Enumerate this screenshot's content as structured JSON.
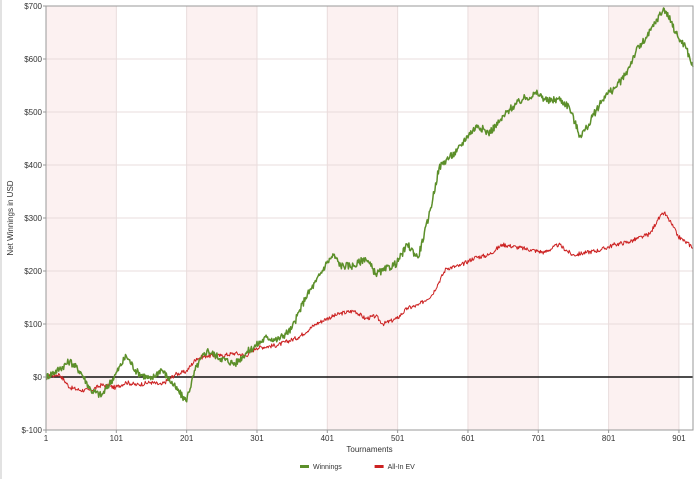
{
  "chart_data": {
    "type": "line",
    "xlabel": "Tournaments",
    "ylabel": "Net Winnings in USD",
    "xlim": [
      1,
      921
    ],
    "ylim": [
      -100,
      700
    ],
    "x_ticks": [
      "1",
      "101",
      "201",
      "301",
      "401",
      "501",
      "601",
      "701",
      "801",
      "901"
    ],
    "y_ticks": [
      "$-100",
      "$0",
      "$100",
      "$200",
      "$300",
      "$400",
      "$500",
      "$600",
      "$700"
    ],
    "grid": true,
    "legend_position": "bottom-center",
    "series": [
      {
        "name": "Winnings",
        "color": "#5c8f2a",
        "x": [
          1,
          20,
          35,
          50,
          65,
          80,
          100,
          115,
          130,
          150,
          165,
          185,
          200,
          215,
          230,
          250,
          270,
          285,
          300,
          315,
          330,
          350,
          370,
          385,
          400,
          410,
          420,
          440,
          455,
          470,
          480,
          500,
          515,
          530,
          545,
          560,
          570,
          585,
          600,
          615,
          630,
          645,
          660,
          680,
          700,
          715,
          730,
          745,
          760,
          770,
          780,
          795,
          810,
          825,
          840,
          855,
          870,
          880,
          890,
          900,
          910,
          921
        ],
        "y": [
          0,
          15,
          30,
          10,
          -25,
          -35,
          5,
          40,
          10,
          -5,
          15,
          -20,
          -45,
          20,
          50,
          35,
          25,
          45,
          60,
          75,
          70,
          90,
          150,
          180,
          215,
          230,
          210,
          210,
          225,
          195,
          200,
          215,
          250,
          225,
          300,
          395,
          410,
          425,
          455,
          475,
          460,
          480,
          505,
          525,
          535,
          520,
          525,
          510,
          455,
          470,
          495,
          530,
          545,
          570,
          615,
          640,
          675,
          695,
          670,
          640,
          625,
          585
        ]
      },
      {
        "name": "All-In EV",
        "color": "#cc2222",
        "x": [
          1,
          20,
          35,
          50,
          65,
          80,
          100,
          115,
          130,
          150,
          165,
          185,
          200,
          215,
          230,
          250,
          270,
          285,
          300,
          330,
          360,
          385,
          400,
          420,
          440,
          455,
          470,
          480,
          500,
          515,
          530,
          550,
          570,
          590,
          610,
          630,
          650,
          670,
          690,
          710,
          730,
          750,
          770,
          790,
          810,
          830,
          850,
          860,
          870,
          880,
          890,
          900,
          910,
          921
        ],
        "y": [
          0,
          5,
          -20,
          -25,
          -25,
          -15,
          -20,
          -10,
          -15,
          -10,
          -15,
          5,
          10,
          35,
          40,
          40,
          45,
          40,
          55,
          60,
          75,
          100,
          110,
          120,
          125,
          110,
          115,
          100,
          110,
          130,
          135,
          155,
          205,
          210,
          225,
          230,
          250,
          245,
          240,
          235,
          250,
          230,
          235,
          240,
          250,
          255,
          265,
          270,
          295,
          310,
          290,
          265,
          255,
          245
        ]
      }
    ]
  }
}
